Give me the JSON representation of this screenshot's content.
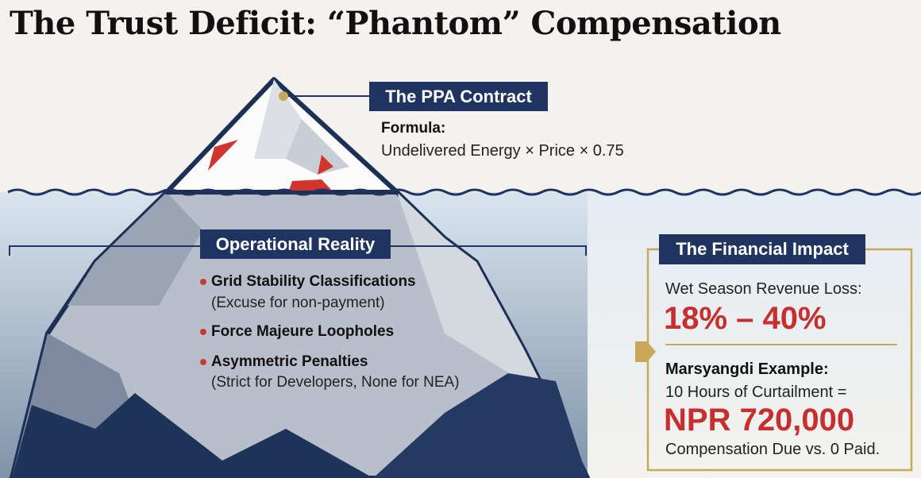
{
  "title": "The Trust Deficit: “Phantom” Compensation",
  "tip": {
    "label": "The PPA Contract",
    "formula_label": "Formula:",
    "formula": "Undelivered Energy × Price × 0.75"
  },
  "reality": {
    "label": "Operational Reality",
    "items": [
      {
        "title": "Grid Stability Classifications",
        "note": "(Excuse for non-payment)"
      },
      {
        "title": "Force Majeure Loopholes"
      },
      {
        "title": "Asymmetric Penalties",
        "note": "(Strict for Developers, None for NEA)"
      }
    ]
  },
  "impact": {
    "label": "The Financial Impact",
    "loss_label": "Wet Season Revenue Loss:",
    "loss_value": "18% – 40%",
    "example_label": "Marsyangdi Example:",
    "example_line": "10 Hours of Curtailment =",
    "example_value": "NPR 720,000",
    "example_note": "Compensation Due vs. 0 Paid."
  }
}
